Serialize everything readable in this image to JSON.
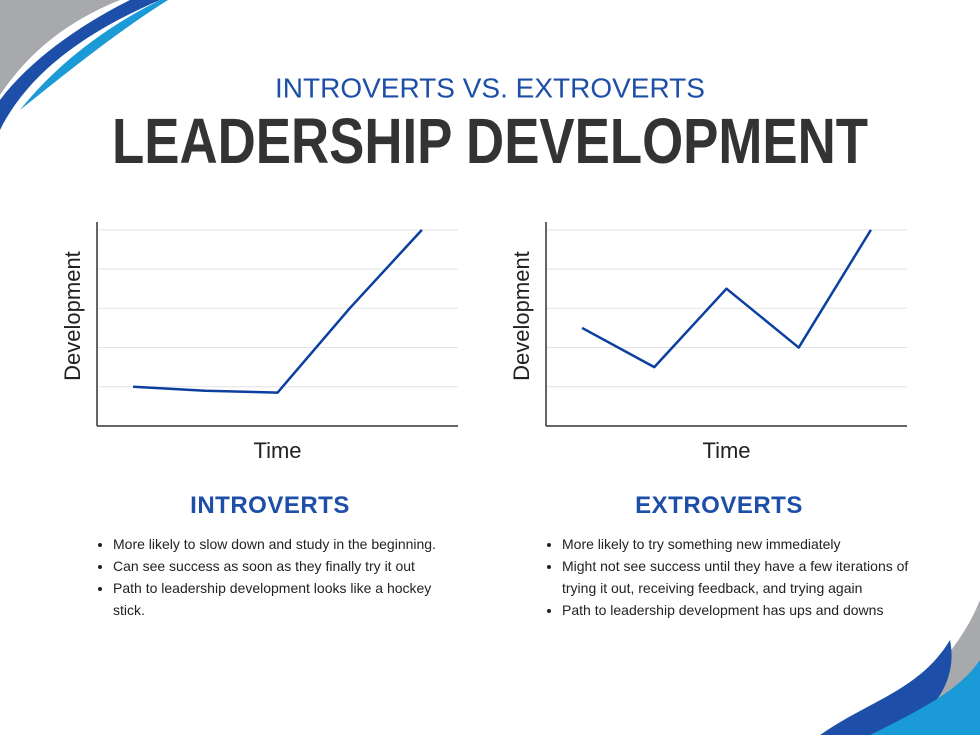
{
  "header": {
    "subtitle": "INTROVERTS VS. EXTROVERTS",
    "title": "LEADERSHIP DEVELOPMENT"
  },
  "chart_data": [
    {
      "type": "line",
      "xlabel": "Time",
      "ylabel": "Development",
      "x": [
        1,
        2,
        3,
        4,
        5
      ],
      "values": [
        1,
        0.9,
        0.85,
        3,
        5
      ],
      "color": "#0b3fa0",
      "xlim": [
        0.5,
        5.5
      ],
      "ylim": [
        0,
        5.2
      ],
      "yticks": [
        1,
        2,
        3,
        4,
        5
      ],
      "grid": true
    },
    {
      "type": "line",
      "xlabel": "Time",
      "ylabel": "Development",
      "x": [
        1,
        2,
        3,
        4,
        5
      ],
      "values": [
        2.5,
        1.5,
        3.5,
        2,
        5
      ],
      "color": "#0b3fa0",
      "xlim": [
        0.5,
        5.5
      ],
      "ylim": [
        0,
        5.2
      ],
      "yticks": [
        1,
        2,
        3,
        4,
        5
      ],
      "grid": true
    }
  ],
  "sections": [
    {
      "heading": "INTROVERTS",
      "bullets": [
        "More likely to slow down and study in the beginning.",
        "Can see success as soon as they finally try it out",
        "Path to leadership development looks like a hockey stick."
      ]
    },
    {
      "heading": "EXTROVERTS",
      "bullets": [
        "More likely to try something new immediately",
        "Might not see success until they have a few iterations of trying it out, receiving feedback, and trying again",
        "Path to leadership development has ups and downs"
      ]
    }
  ]
}
